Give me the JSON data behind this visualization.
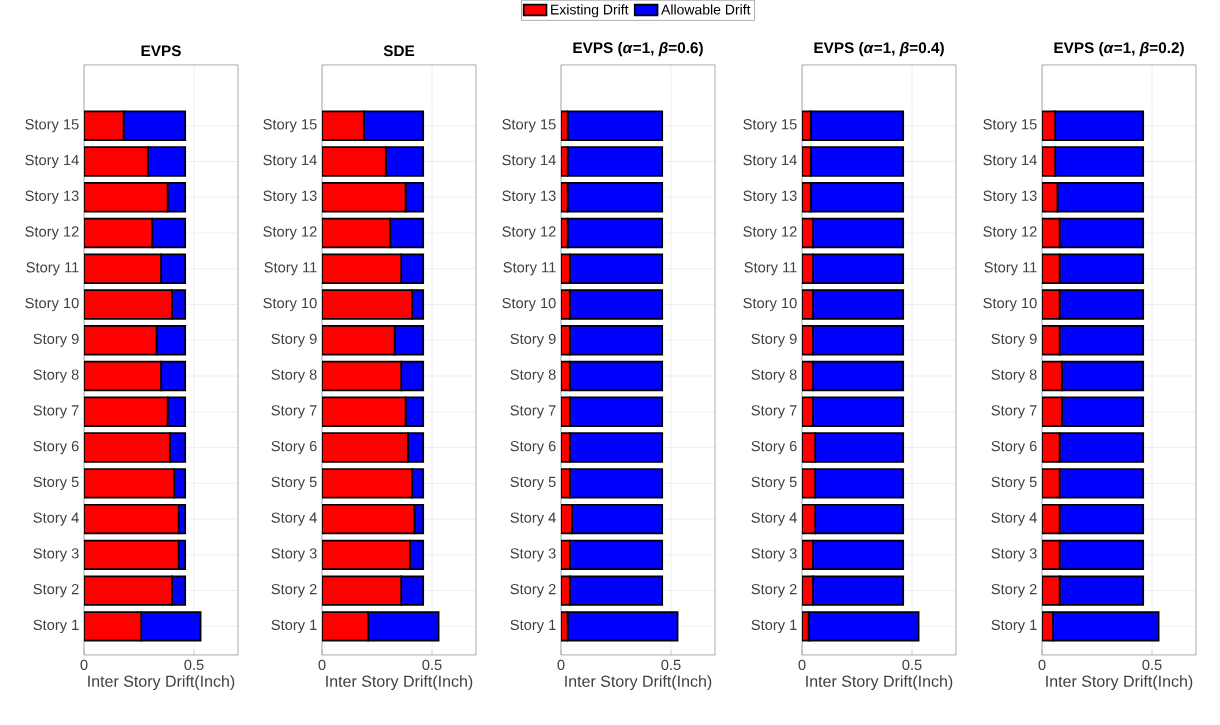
{
  "chart_data": [
    {
      "type": "bar",
      "orientation": "horizontal",
      "stacked": true,
      "title": "EVPS",
      "xlabel": "Inter Story Drift(Inch)",
      "categories": [
        "Story 15",
        "Story 14",
        "Story 13",
        "Story 12",
        "Story 11",
        "Story 10",
        "Story 9",
        "Story 8",
        "Story 7",
        "Story 6",
        "Story 5",
        "Story 4",
        "Story 3",
        "Story 2",
        "Story 1"
      ],
      "xlim": [
        0,
        0.7
      ],
      "xticks": [
        0,
        0.5
      ],
      "grid": true,
      "series": [
        {
          "color": "#ff0000",
          "values": [
            0.18,
            0.29,
            0.38,
            0.31,
            0.35,
            0.4,
            0.33,
            0.35,
            0.38,
            0.39,
            0.41,
            0.43,
            0.43,
            0.4,
            0.26
          ]
        },
        {
          "color": "#0000ff",
          "values": [
            0.28,
            0.17,
            0.08,
            0.15,
            0.11,
            0.06,
            0.13,
            0.11,
            0.08,
            0.07,
            0.05,
            0.03,
            0.03,
            0.06,
            0.27
          ]
        }
      ]
    },
    {
      "type": "bar",
      "orientation": "horizontal",
      "stacked": true,
      "title": "SDE",
      "xlabel": "Inter Story Drift(Inch)",
      "categories": [
        "Story 15",
        "Story 14",
        "Story 13",
        "Story 12",
        "Story 11",
        "Story 10",
        "Story 9",
        "Story 8",
        "Story 7",
        "Story 6",
        "Story 5",
        "Story 4",
        "Story 3",
        "Story 2",
        "Story 1"
      ],
      "xlim": [
        0,
        0.7
      ],
      "xticks": [
        0,
        0.5
      ],
      "grid": true,
      "series": [
        {
          "color": "#ff0000",
          "values": [
            0.19,
            0.29,
            0.38,
            0.31,
            0.36,
            0.41,
            0.33,
            0.36,
            0.38,
            0.39,
            0.41,
            0.42,
            0.4,
            0.36,
            0.21
          ]
        },
        {
          "color": "#0000ff",
          "values": [
            0.27,
            0.17,
            0.08,
            0.15,
            0.1,
            0.05,
            0.13,
            0.1,
            0.08,
            0.07,
            0.05,
            0.04,
            0.06,
            0.1,
            0.32
          ]
        }
      ]
    },
    {
      "type": "bar",
      "orientation": "horizontal",
      "stacked": true,
      "title": "EVPS (*α*=1, *β*=0.6)",
      "xlabel": "Inter Story Drift(Inch)",
      "categories": [
        "Story 15",
        "Story 14",
        "Story 13",
        "Story 12",
        "Story 11",
        "Story 10",
        "Story 9",
        "Story 8",
        "Story 7",
        "Story 6",
        "Story 5",
        "Story 4",
        "Story 3",
        "Story 2",
        "Story 1"
      ],
      "xlim": [
        0,
        0.7
      ],
      "xticks": [
        0,
        0.5
      ],
      "grid": true,
      "legend": "top",
      "series": [
        {
          "name": "Existing Drift",
          "color": "#ff0000",
          "values": [
            0.03,
            0.03,
            0.03,
            0.03,
            0.04,
            0.04,
            0.04,
            0.04,
            0.04,
            0.04,
            0.04,
            0.05,
            0.04,
            0.04,
            0.03
          ]
        },
        {
          "name": "Allowable Drift",
          "color": "#0000ff",
          "values": [
            0.43,
            0.43,
            0.43,
            0.43,
            0.42,
            0.42,
            0.42,
            0.42,
            0.42,
            0.42,
            0.42,
            0.41,
            0.42,
            0.42,
            0.5
          ]
        }
      ]
    },
    {
      "type": "bar",
      "orientation": "horizontal",
      "stacked": true,
      "title": "EVPS (*α*=1, *β*=0.4)",
      "xlabel": "Inter Story Drift(Inch)",
      "categories": [
        "Story 15",
        "Story 14",
        "Story 13",
        "Story 12",
        "Story 11",
        "Story 10",
        "Story 9",
        "Story 8",
        "Story 7",
        "Story 6",
        "Story 5",
        "Story 4",
        "Story 3",
        "Story 2",
        "Story 1"
      ],
      "xlim": [
        0,
        0.7
      ],
      "xticks": [
        0,
        0.5
      ],
      "grid": true,
      "series": [
        {
          "color": "#ff0000",
          "values": [
            0.04,
            0.04,
            0.04,
            0.05,
            0.05,
            0.05,
            0.05,
            0.05,
            0.05,
            0.06,
            0.06,
            0.06,
            0.05,
            0.05,
            0.03
          ]
        },
        {
          "color": "#0000ff",
          "values": [
            0.42,
            0.42,
            0.42,
            0.41,
            0.41,
            0.41,
            0.41,
            0.41,
            0.41,
            0.4,
            0.4,
            0.4,
            0.41,
            0.41,
            0.5
          ]
        }
      ]
    },
    {
      "type": "bar",
      "orientation": "horizontal",
      "stacked": true,
      "title": "EVPS (*α*=1, *β*=0.2)",
      "xlabel": "Inter Story Drift(Inch)",
      "categories": [
        "Story 15",
        "Story 14",
        "Story 13",
        "Story 12",
        "Story 11",
        "Story 10",
        "Story 9",
        "Story 8",
        "Story 7",
        "Story 6",
        "Story 5",
        "Story 4",
        "Story 3",
        "Story 2",
        "Story 1"
      ],
      "xlim": [
        0,
        0.7
      ],
      "xticks": [
        0,
        0.5
      ],
      "grid": true,
      "series": [
        {
          "color": "#ff0000",
          "values": [
            0.06,
            0.06,
            0.07,
            0.08,
            0.08,
            0.08,
            0.08,
            0.09,
            0.09,
            0.08,
            0.08,
            0.08,
            0.08,
            0.08,
            0.05
          ]
        },
        {
          "color": "#0000ff",
          "values": [
            0.4,
            0.4,
            0.39,
            0.38,
            0.38,
            0.38,
            0.38,
            0.37,
            0.37,
            0.38,
            0.38,
            0.38,
            0.38,
            0.38,
            0.48
          ]
        }
      ]
    }
  ]
}
